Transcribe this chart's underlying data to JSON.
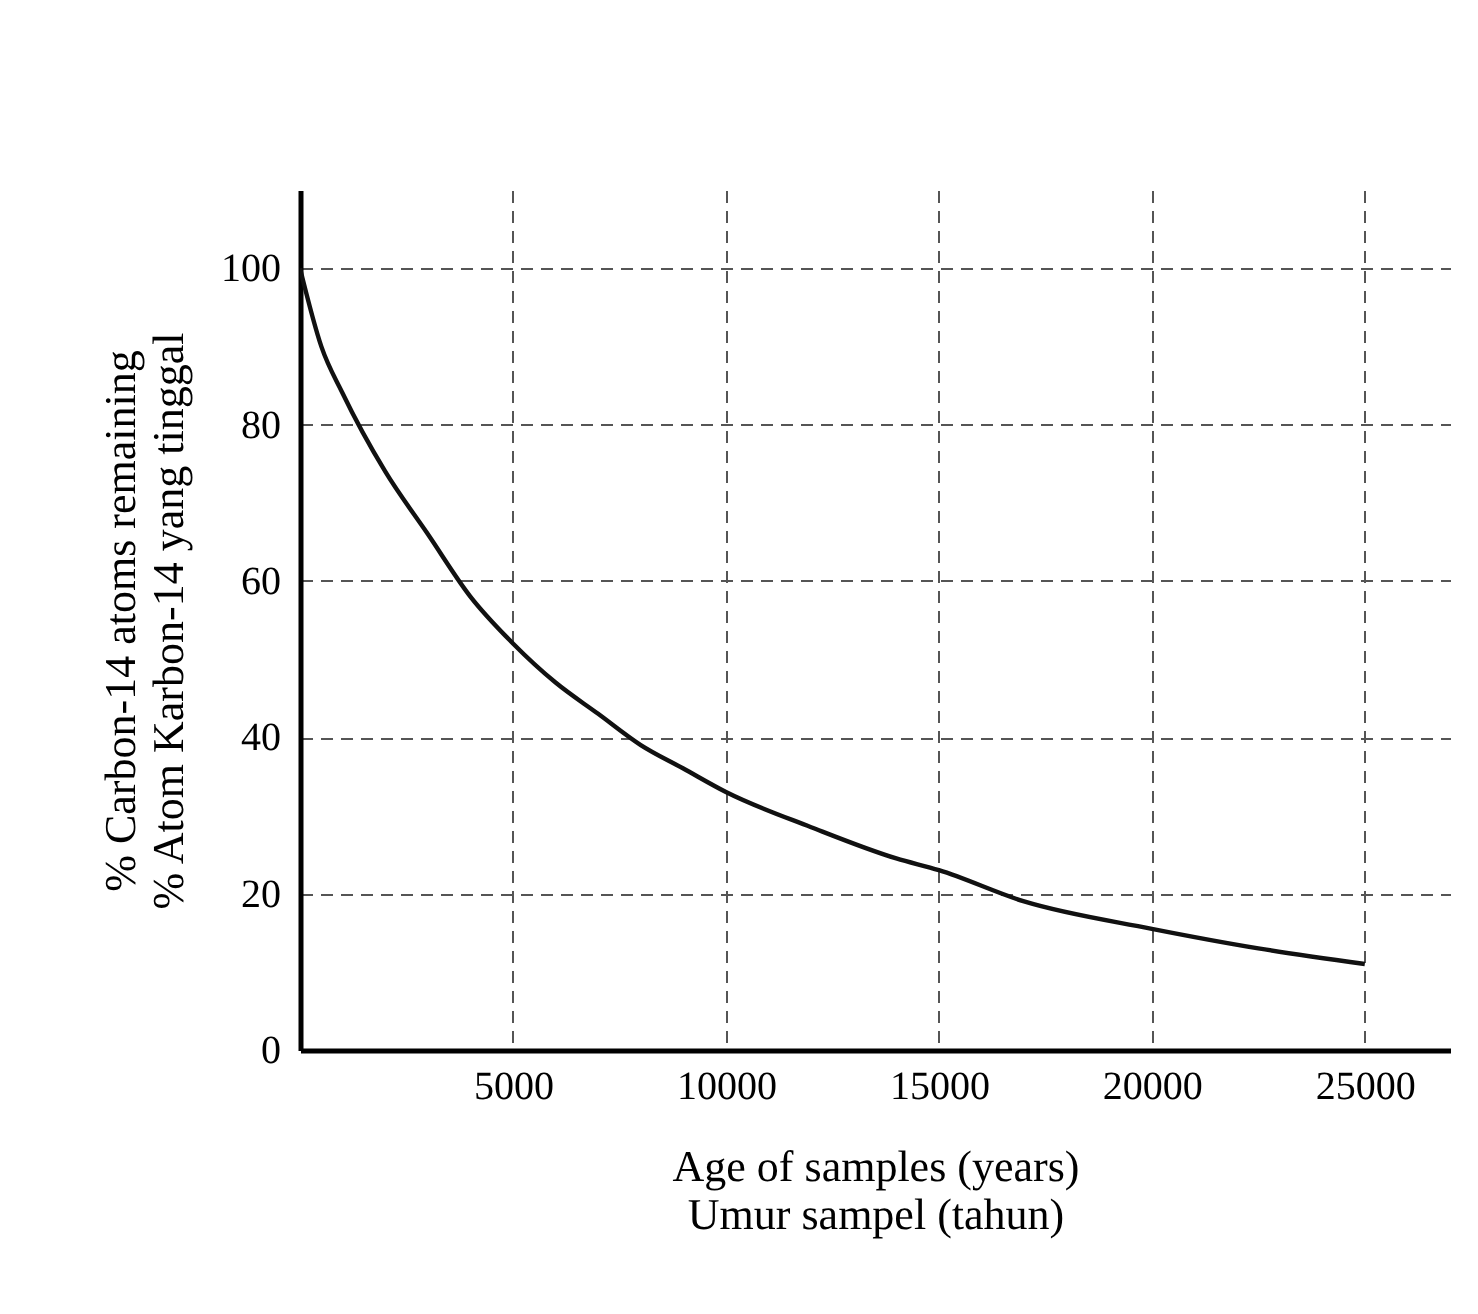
{
  "chart_data": {
    "type": "line",
    "x": [
      0,
      500,
      1000,
      2000,
      3000,
      4000,
      5000,
      6000,
      7000,
      8000,
      9000,
      10000,
      12000,
      14000,
      15000,
      17000,
      20000,
      22500,
      25000
    ],
    "series": [
      {
        "color": "#111111",
        "values": [
          100,
          90,
          84,
          74,
          66,
          58,
          52,
          47,
          43,
          39,
          36,
          33,
          28.5,
          24.5,
          23,
          19,
          15.5,
          13,
          11
        ]
      }
    ],
    "xlabel": "Age of samples (years)\nUmur sampel (tahun)",
    "ylabel": "% Carbon-14 atoms remaining\n% Atom Karbon-14 yang tinggal",
    "xlim": [
      0,
      27000
    ],
    "xticks": [
      5000,
      10000,
      15000,
      20000,
      25000
    ],
    "ylim": [
      0,
      110
    ],
    "yticks": [
      0,
      20,
      40,
      60,
      80,
      100
    ],
    "grid": true,
    "line_style": "solid",
    "marker": "none"
  }
}
